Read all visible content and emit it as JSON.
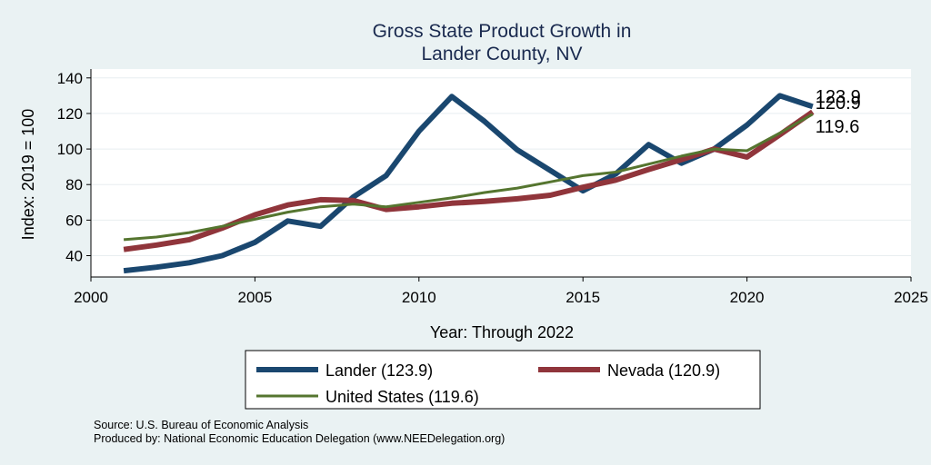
{
  "chart_data": {
    "type": "line",
    "title": [
      "Gross State Product Growth in",
      "Lander County, NV"
    ],
    "xlabel": "Year: Through 2022",
    "ylabel": "Index: 2019 = 100",
    "xlim": [
      2000,
      2025
    ],
    "ylim": [
      28,
      145
    ],
    "xticks": [
      2000,
      2005,
      2010,
      2015,
      2020,
      2025
    ],
    "yticks": [
      40,
      60,
      80,
      100,
      120,
      140
    ],
    "grid": true,
    "legend_position": "bottom",
    "x": [
      2001,
      2002,
      2003,
      2004,
      2005,
      2006,
      2007,
      2008,
      2009,
      2010,
      2011,
      2012,
      2013,
      2014,
      2015,
      2016,
      2017,
      2018,
      2019,
      2020,
      2021,
      2022
    ],
    "series": [
      {
        "name": "Lander",
        "legend_label": "Lander  (123.9)",
        "end_label": "123.9",
        "color": "#1a476f",
        "values": [
          31.5,
          33.5,
          36,
          40,
          47.5,
          59.5,
          56.5,
          73,
          85,
          110,
          129.5,
          115.5,
          99.5,
          88,
          76.5,
          86,
          102.5,
          92,
          100,
          113.5,
          130,
          123.9
        ]
      },
      {
        "name": "Nevada",
        "legend_label": "Nevada (120.9)",
        "end_label": "120.9",
        "color": "#90353b",
        "values": [
          43.5,
          46,
          49,
          55.5,
          63,
          68.5,
          71.5,
          71,
          66,
          67.5,
          69.5,
          70.5,
          72,
          74,
          78.5,
          82.5,
          88.5,
          94,
          100,
          95.5,
          108,
          120.9
        ]
      },
      {
        "name": "United States",
        "legend_label": "United States (119.6)",
        "end_label": "119.6",
        "color": "#55752f",
        "values": [
          49,
          50.5,
          53,
          56.5,
          60.5,
          64.5,
          67.5,
          69,
          67.5,
          70,
          72.5,
          75.5,
          78,
          81.5,
          85,
          87,
          91.5,
          96,
          100,
          99,
          109,
          119.6
        ]
      }
    ]
  },
  "source": {
    "line1": "Source: U.S. Bureau of Economic Analysis",
    "line2": "Produced by: National Economic Education Delegation (www.NEEDelegation.org)"
  }
}
